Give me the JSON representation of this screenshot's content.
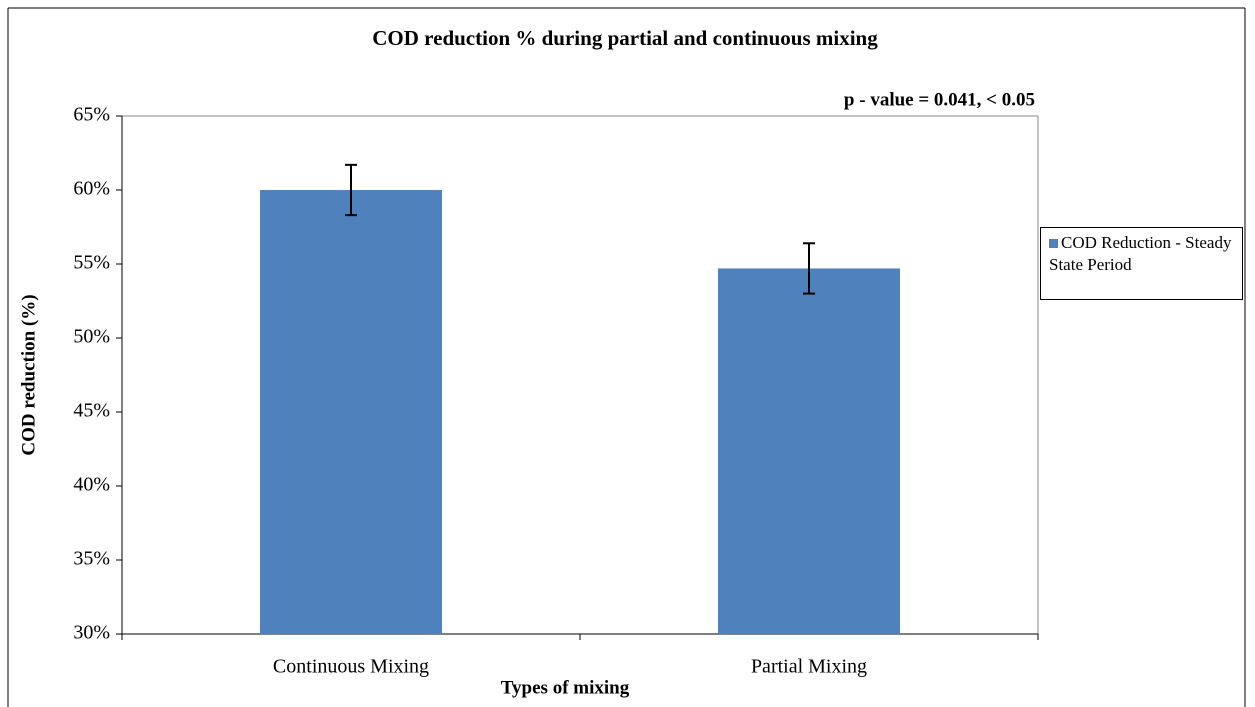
{
  "chart_data": {
    "type": "bar",
    "title": "COD reduction  % during  partial and continuous mixing",
    "annotation": "p - value =  0.041, < 0.05",
    "x_label": "Types of mixing",
    "y_label": "COD reduction (%)",
    "categories": [
      "Continuous Mixing",
      "Partial Mixing"
    ],
    "series": [
      {
        "name": "COD Reduction - Steady State Period",
        "color": "#4f81bd",
        "values": [
          60,
          54.7
        ],
        "errors": [
          1.7,
          1.7
        ]
      }
    ],
    "ylim": [
      30,
      65
    ],
    "yticks": [
      {
        "value": 30,
        "label": "30%"
      },
      {
        "value": 35,
        "label": "35%"
      },
      {
        "value": 40,
        "label": "40%"
      },
      {
        "value": 45,
        "label": "45%"
      },
      {
        "value": 50,
        "label": "50%"
      },
      {
        "value": 55,
        "label": "55%"
      },
      {
        "value": 60,
        "label": "60%"
      },
      {
        "value": 65,
        "label": "65%"
      }
    ],
    "legend": "right"
  }
}
